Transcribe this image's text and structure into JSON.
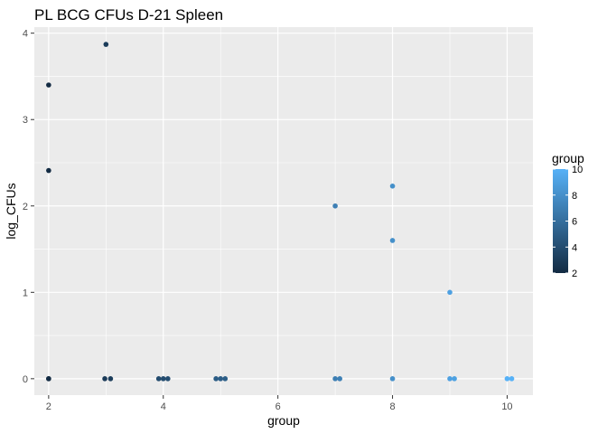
{
  "chart_data": {
    "type": "scatter",
    "title": "PL BCG CFUs D-21 Spleen",
    "xlabel": "group",
    "ylabel": "log_CFUs",
    "xlim": [
      1.75,
      10.45
    ],
    "ylim": [
      -0.19,
      4.07
    ],
    "x_ticks": [
      2,
      4,
      6,
      8,
      10
    ],
    "y_ticks": [
      0,
      1,
      2,
      3,
      4
    ],
    "grid": true,
    "panel_background": "#ebebeb",
    "grid_color": "#ffffff",
    "color_scale": {
      "low": "#132b43",
      "high": "#56b1f7",
      "min": 2,
      "max": 10,
      "legend_title": "group",
      "legend_ticks": [
        2,
        4,
        6,
        8,
        10
      ],
      "legend_position": "right"
    },
    "points": [
      {
        "x": 2,
        "y": 3.4
      },
      {
        "x": 2,
        "y": 2.41
      },
      {
        "x": 2,
        "y": 0
      },
      {
        "x": 2,
        "y": 0
      },
      {
        "x": 3,
        "y": 3.87
      },
      {
        "x": 2.98,
        "y": 0
      },
      {
        "x": 3.08,
        "y": 0
      },
      {
        "x": 3.92,
        "y": 0
      },
      {
        "x": 4.0,
        "y": 0
      },
      {
        "x": 4.08,
        "y": 0
      },
      {
        "x": 4.92,
        "y": 0
      },
      {
        "x": 5.0,
        "y": 0
      },
      {
        "x": 5.08,
        "y": 0
      },
      {
        "x": 7,
        "y": 2.0
      },
      {
        "x": 7.0,
        "y": 0
      },
      {
        "x": 7.08,
        "y": 0
      },
      {
        "x": 8,
        "y": 2.23
      },
      {
        "x": 8,
        "y": 1.6
      },
      {
        "x": 8,
        "y": 0
      },
      {
        "x": 9,
        "y": 1.0
      },
      {
        "x": 9.0,
        "y": 0
      },
      {
        "x": 9.08,
        "y": 0
      },
      {
        "x": 10.0,
        "y": 0
      },
      {
        "x": 10.08,
        "y": 0
      }
    ]
  }
}
